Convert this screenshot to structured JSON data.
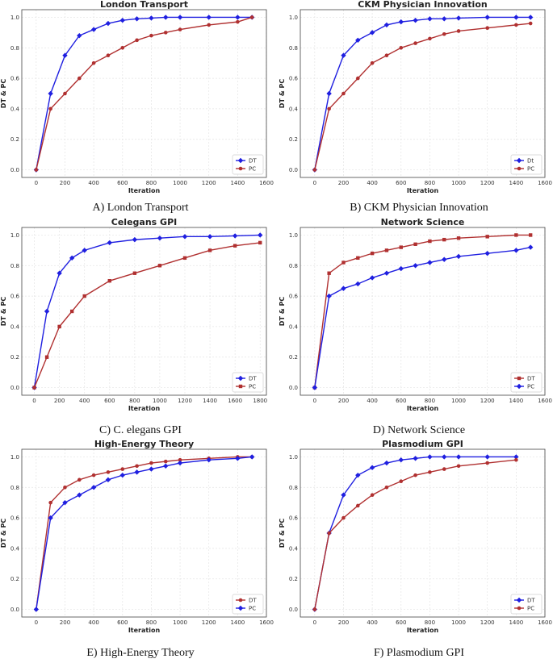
{
  "colors": {
    "blue": "#1f1fe0",
    "red": "#b03030",
    "grid": "#e4e4e4",
    "frame": "#444444"
  },
  "chart_data": [
    {
      "type": "line",
      "title": "London Transport",
      "caption": "A) London Transport",
      "xlabel": "Iteration",
      "ylabel": "DT & PC",
      "xlim": [
        -100,
        1600
      ],
      "ylim": [
        -0.05,
        1.05
      ],
      "xticks": [
        "0",
        "200",
        "400",
        "600",
        "800",
        "1000",
        "1200",
        "1400",
        "1600"
      ],
      "yticks": [
        "0.0",
        "0.2",
        "0.4",
        "0.6",
        "0.8",
        "1.0"
      ],
      "legend": "bottom-right",
      "series": [
        {
          "name": "DT",
          "color": "blue",
          "marker": "diamond",
          "x": [
            0,
            100,
            200,
            300,
            400,
            500,
            600,
            700,
            800,
            900,
            1000,
            1200,
            1400,
            1500
          ],
          "y": [
            0.0,
            0.5,
            0.75,
            0.88,
            0.92,
            0.96,
            0.98,
            0.99,
            0.995,
            1.0,
            1.0,
            1.0,
            1.0,
            1.0
          ]
        },
        {
          "name": "PC",
          "color": "red",
          "marker": "circle",
          "x": [
            0,
            100,
            200,
            300,
            400,
            500,
            600,
            700,
            800,
            900,
            1000,
            1200,
            1400,
            1500
          ],
          "y": [
            0.0,
            0.4,
            0.5,
            0.6,
            0.7,
            0.75,
            0.8,
            0.85,
            0.88,
            0.9,
            0.92,
            0.95,
            0.97,
            1.0
          ]
        }
      ]
    },
    {
      "type": "line",
      "title": "CKM Physician Innovation",
      "caption": "B) CKM Physician Innovation",
      "xlabel": "Iteration",
      "ylabel": "DT & PC",
      "xlim": [
        -100,
        1600
      ],
      "ylim": [
        -0.05,
        1.05
      ],
      "xticks": [
        "0",
        "200",
        "400",
        "600",
        "800",
        "1000",
        "1200",
        "1400",
        "1600"
      ],
      "yticks": [
        "0.0",
        "0.2",
        "0.4",
        "0.6",
        "0.8",
        "1.0"
      ],
      "legend": "bottom-right",
      "series": [
        {
          "name": "Dt",
          "color": "blue",
          "marker": "diamond",
          "x": [
            0,
            100,
            200,
            300,
            400,
            500,
            600,
            700,
            800,
            900,
            1000,
            1200,
            1400,
            1500
          ],
          "y": [
            0.0,
            0.5,
            0.75,
            0.85,
            0.9,
            0.95,
            0.97,
            0.98,
            0.99,
            0.99,
            0.995,
            1.0,
            1.0,
            1.0
          ]
        },
        {
          "name": "PC",
          "color": "red",
          "marker": "circle",
          "x": [
            0,
            100,
            200,
            300,
            400,
            500,
            600,
            700,
            800,
            900,
            1000,
            1200,
            1400,
            1500
          ],
          "y": [
            0.0,
            0.4,
            0.5,
            0.6,
            0.7,
            0.75,
            0.8,
            0.83,
            0.86,
            0.89,
            0.91,
            0.93,
            0.95,
            0.96
          ]
        }
      ]
    },
    {
      "type": "line",
      "title": "Celegans GPI",
      "caption": "C) C. elegans GPI",
      "xlabel": "Iteration",
      "ylabel": "DT & PC",
      "xlim": [
        -100,
        1850
      ],
      "ylim": [
        -0.05,
        1.05
      ],
      "xticks": [
        "0",
        "200",
        "400",
        "600",
        "800",
        "1000",
        "1200",
        "1400",
        "1600",
        "1800"
      ],
      "yticks": [
        "0.0",
        "0.2",
        "0.4",
        "0.6",
        "0.8",
        "1.0"
      ],
      "legend": "bottom-right",
      "series": [
        {
          "name": "DT",
          "color": "blue",
          "marker": "diamond",
          "x": [
            0,
            100,
            200,
            300,
            400,
            600,
            800,
            1000,
            1200,
            1400,
            1600,
            1800
          ],
          "y": [
            0.0,
            0.5,
            0.75,
            0.85,
            0.9,
            0.95,
            0.97,
            0.98,
            0.99,
            0.99,
            0.995,
            1.0
          ]
        },
        {
          "name": "PC",
          "color": "red",
          "marker": "square",
          "x": [
            0,
            100,
            200,
            300,
            400,
            600,
            800,
            1000,
            1200,
            1400,
            1600,
            1800
          ],
          "y": [
            0.0,
            0.2,
            0.4,
            0.5,
            0.6,
            0.7,
            0.75,
            0.8,
            0.85,
            0.9,
            0.93,
            0.95
          ]
        }
      ]
    },
    {
      "type": "line",
      "title": "Network Science",
      "caption": "D) Network Science",
      "xlabel": "Iteration",
      "ylabel": "DT & PC",
      "xlim": [
        -100,
        1600
      ],
      "ylim": [
        -0.05,
        1.05
      ],
      "xticks": [
        "0",
        "200",
        "400",
        "600",
        "800",
        "1000",
        "1200",
        "1400",
        "1600"
      ],
      "yticks": [
        "0.0",
        "0.2",
        "0.4",
        "0.6",
        "0.8",
        "1.0"
      ],
      "legend": "bottom-right",
      "series": [
        {
          "name": "DT",
          "color": "red",
          "marker": "square",
          "x": [
            0,
            100,
            200,
            300,
            400,
            500,
            600,
            700,
            800,
            900,
            1000,
            1200,
            1400,
            1500
          ],
          "y": [
            0.0,
            0.75,
            0.82,
            0.85,
            0.88,
            0.9,
            0.92,
            0.94,
            0.96,
            0.97,
            0.98,
            0.99,
            1.0,
            1.0
          ]
        },
        {
          "name": "PC",
          "color": "blue",
          "marker": "diamond",
          "x": [
            0,
            100,
            200,
            300,
            400,
            500,
            600,
            700,
            800,
            900,
            1000,
            1200,
            1400,
            1500
          ],
          "y": [
            0.0,
            0.6,
            0.65,
            0.68,
            0.72,
            0.75,
            0.78,
            0.8,
            0.82,
            0.84,
            0.86,
            0.88,
            0.9,
            0.92
          ]
        }
      ]
    },
    {
      "type": "line",
      "title": "High-Energy Theory",
      "caption": "E) High-Energy Theory",
      "xlabel": "Iteration",
      "ylabel": "DT & PC",
      "xlim": [
        -100,
        1600
      ],
      "ylim": [
        -0.05,
        1.05
      ],
      "xticks": [
        "0",
        "200",
        "400",
        "600",
        "800",
        "1000",
        "1200",
        "1400",
        "1600"
      ],
      "yticks": [
        "0.0",
        "0.2",
        "0.4",
        "0.6",
        "0.8",
        "1.0"
      ],
      "legend": "bottom-right",
      "series": [
        {
          "name": "DT",
          "color": "red",
          "marker": "circle",
          "x": [
            0,
            100,
            200,
            300,
            400,
            500,
            600,
            700,
            800,
            900,
            1000,
            1200,
            1400,
            1500
          ],
          "y": [
            0.0,
            0.7,
            0.8,
            0.85,
            0.88,
            0.9,
            0.92,
            0.94,
            0.96,
            0.97,
            0.98,
            0.99,
            1.0,
            1.0
          ]
        },
        {
          "name": "PC",
          "color": "blue",
          "marker": "diamond",
          "x": [
            0,
            100,
            200,
            300,
            400,
            500,
            600,
            700,
            800,
            900,
            1000,
            1200,
            1400,
            1500
          ],
          "y": [
            0.0,
            0.6,
            0.7,
            0.75,
            0.8,
            0.85,
            0.88,
            0.9,
            0.92,
            0.94,
            0.96,
            0.98,
            0.99,
            1.0
          ]
        }
      ]
    },
    {
      "type": "line",
      "title": "Plasmodium GPI",
      "caption": "F) Plasmodium GPI",
      "xlabel": "Iteration",
      "ylabel": "DT & PC",
      "xlim": [
        -100,
        1600
      ],
      "ylim": [
        -0.05,
        1.05
      ],
      "xticks": [
        "0",
        "200",
        "400",
        "600",
        "800",
        "1000",
        "1200",
        "1400",
        "1600"
      ],
      "yticks": [
        "0.0",
        "0.2",
        "0.4",
        "0.6",
        "0.8",
        "1.0"
      ],
      "legend": "bottom-right",
      "series": [
        {
          "name": "DT",
          "color": "blue",
          "marker": "diamond",
          "x": [
            0,
            100,
            200,
            300,
            400,
            500,
            600,
            700,
            800,
            900,
            1000,
            1200,
            1400
          ],
          "y": [
            0.0,
            0.5,
            0.75,
            0.88,
            0.93,
            0.96,
            0.98,
            0.99,
            1.0,
            1.0,
            1.0,
            1.0,
            1.0
          ]
        },
        {
          "name": "PC",
          "color": "red",
          "marker": "circle",
          "x": [
            0,
            100,
            200,
            300,
            400,
            500,
            600,
            700,
            800,
            900,
            1000,
            1200,
            1400
          ],
          "y": [
            0.0,
            0.5,
            0.6,
            0.68,
            0.75,
            0.8,
            0.84,
            0.88,
            0.9,
            0.92,
            0.94,
            0.96,
            0.98
          ]
        }
      ]
    }
  ]
}
